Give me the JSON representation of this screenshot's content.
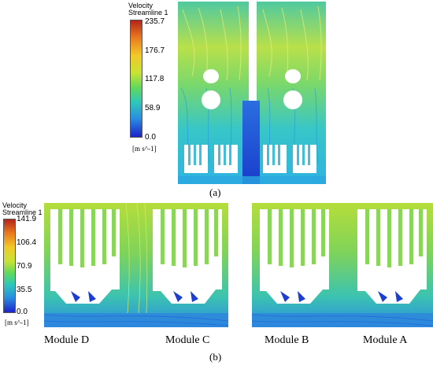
{
  "panel_a": {
    "legend": {
      "title_line1": "Velocity",
      "title_line2": "Streamline 1",
      "ticks": [
        "235.7",
        "176.7",
        "117.8",
        "58.9",
        "0.0"
      ],
      "unit": "[m s^-1]"
    },
    "caption": "(a)"
  },
  "panel_b": {
    "legend": {
      "title_line1": "Velocity",
      "title_line2": "Streamline 1",
      "ticks": [
        "141.9",
        "106.4",
        "70.9",
        "35.5",
        "0.0"
      ],
      "unit": "[m s^-1]"
    },
    "module_labels": [
      "Module D",
      "Module C",
      "Module B",
      "Module A"
    ],
    "caption": "(b)"
  },
  "colors": {
    "high": "#b2241a",
    "mid_high": "#f2c928",
    "mid": "#5fd85e",
    "low": "#2a8fe0",
    "zero": "#1d23c8"
  }
}
